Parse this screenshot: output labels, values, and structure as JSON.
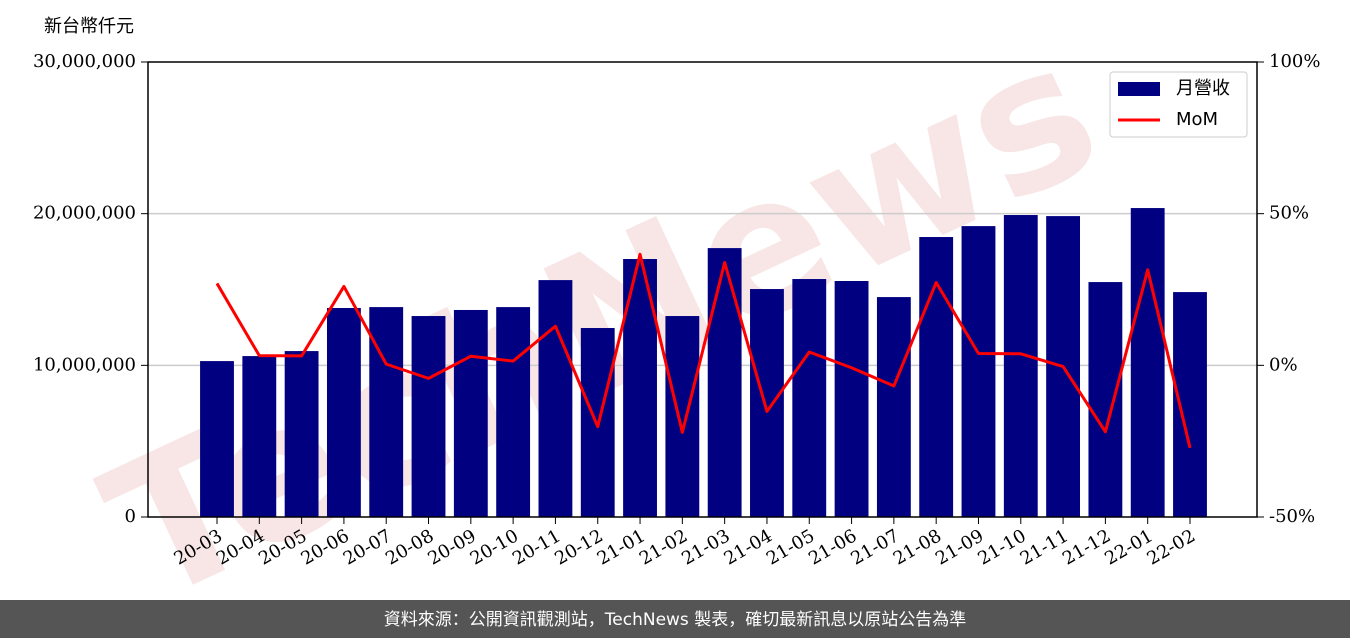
{
  "chart_data": {
    "type": "bar",
    "y_label": "新台幣仟元",
    "watermark": "TechNews",
    "footer": "資料來源：公開資訊觀測站，TechNews 製表，確切最新訊息以原站公告為準",
    "categories": [
      "20-03",
      "20-04",
      "20-05",
      "20-06",
      "20-07",
      "20-08",
      "20-09",
      "20-10",
      "20-11",
      "20-12",
      "21-01",
      "21-02",
      "21-03",
      "21-04",
      "21-05",
      "21-06",
      "21-07",
      "21-08",
      "21-09",
      "21-10",
      "21-11",
      "21-12",
      "22-01",
      "22-02"
    ],
    "series": [
      {
        "name": "月營收",
        "type": "bar",
        "color": "#000080",
        "values": [
          10280000,
          10610000,
          10940000,
          13780000,
          13840000,
          13250000,
          13650000,
          13840000,
          15620000,
          12460000,
          17010000,
          13250000,
          17730000,
          15030000,
          15690000,
          15560000,
          14500000,
          18460000,
          19180000,
          19910000,
          19840000,
          15490000,
          20370000,
          14830000
        ]
      },
      {
        "name": "MoM",
        "type": "line",
        "color": "#ff0000",
        "axis": "y2",
        "values": [
          27.0,
          3.2,
          3.1,
          26.0,
          0.4,
          -4.3,
          3.0,
          1.4,
          12.9,
          -20.2,
          36.6,
          -22.1,
          33.9,
          -15.2,
          4.4,
          -0.8,
          -6.8,
          27.3,
          3.9,
          3.8,
          -0.4,
          -21.9,
          31.5,
          -27.2
        ]
      }
    ],
    "ylim": [
      0,
      30000000
    ],
    "yticks": [
      0,
      {
        "value": 10000000,
        "label": "10,000,000"
      },
      {
        "value": 20000000,
        "label": "20,000,000"
      },
      {
        "value": 30000000,
        "label": "30,000,000"
      }
    ],
    "y2lim": [
      -50,
      100
    ],
    "y2ticks": [
      {
        "value": -50,
        "label": "-50%"
      },
      {
        "value": 0,
        "label": "0%"
      },
      {
        "value": 50,
        "label": "50%"
      },
      {
        "value": 100,
        "label": "100%"
      }
    ],
    "grid": true,
    "legend": "upper right"
  }
}
